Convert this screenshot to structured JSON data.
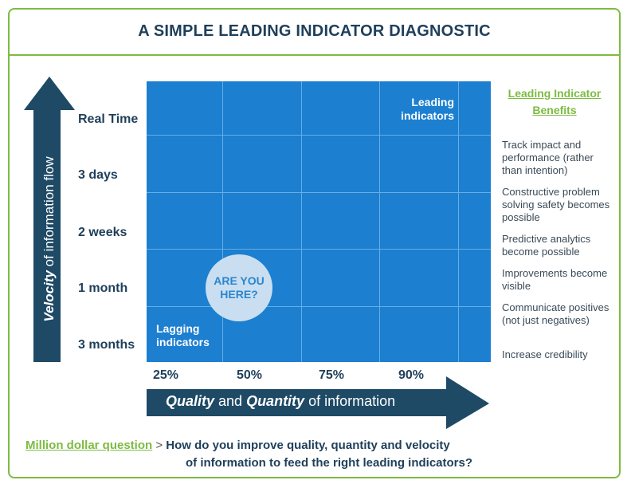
{
  "title": "A SIMPLE LEADING INDICATOR DIAGNOSTIC",
  "y_axis": {
    "label_bold": "Velocity",
    "label_rest": " of information flow",
    "ticks": [
      "Real Time",
      "3 days",
      "2 weeks",
      "1 month",
      "3 months"
    ]
  },
  "x_axis": {
    "label_bold1": "Quality",
    "label_mid": " and ",
    "label_bold2": "Quantity",
    "label_rest": " of information",
    "ticks": [
      "25%",
      "50%",
      "75%",
      "90%"
    ]
  },
  "grid": {
    "leading_line1": "Leading",
    "leading_line2": "indicators",
    "lagging_line1": "Lagging",
    "lagging_line2": "indicators",
    "circle_line1": "ARE YOU",
    "circle_line2": "HERE?"
  },
  "benefits": {
    "title_line1": "Leading Indicator",
    "title_line2": "Benefits",
    "items": [
      "Track impact and performance (rather than intention)",
      "Constructive problem solving safety becomes possible",
      "Predictive analytics become possible",
      "Improvements become visible",
      "Communicate positives (not just negatives)",
      "Increase credibility"
    ]
  },
  "question": {
    "link": "Million dollar question",
    "separator": " > ",
    "line1": "How do you improve quality, quantity and velocity",
    "line2": "of information to feed the right leading indicators?"
  },
  "colors": {
    "grid": "#1c7fd0",
    "arrow": "#1e4a66",
    "accent": "#7dbb42",
    "circle": "#c9def0"
  }
}
